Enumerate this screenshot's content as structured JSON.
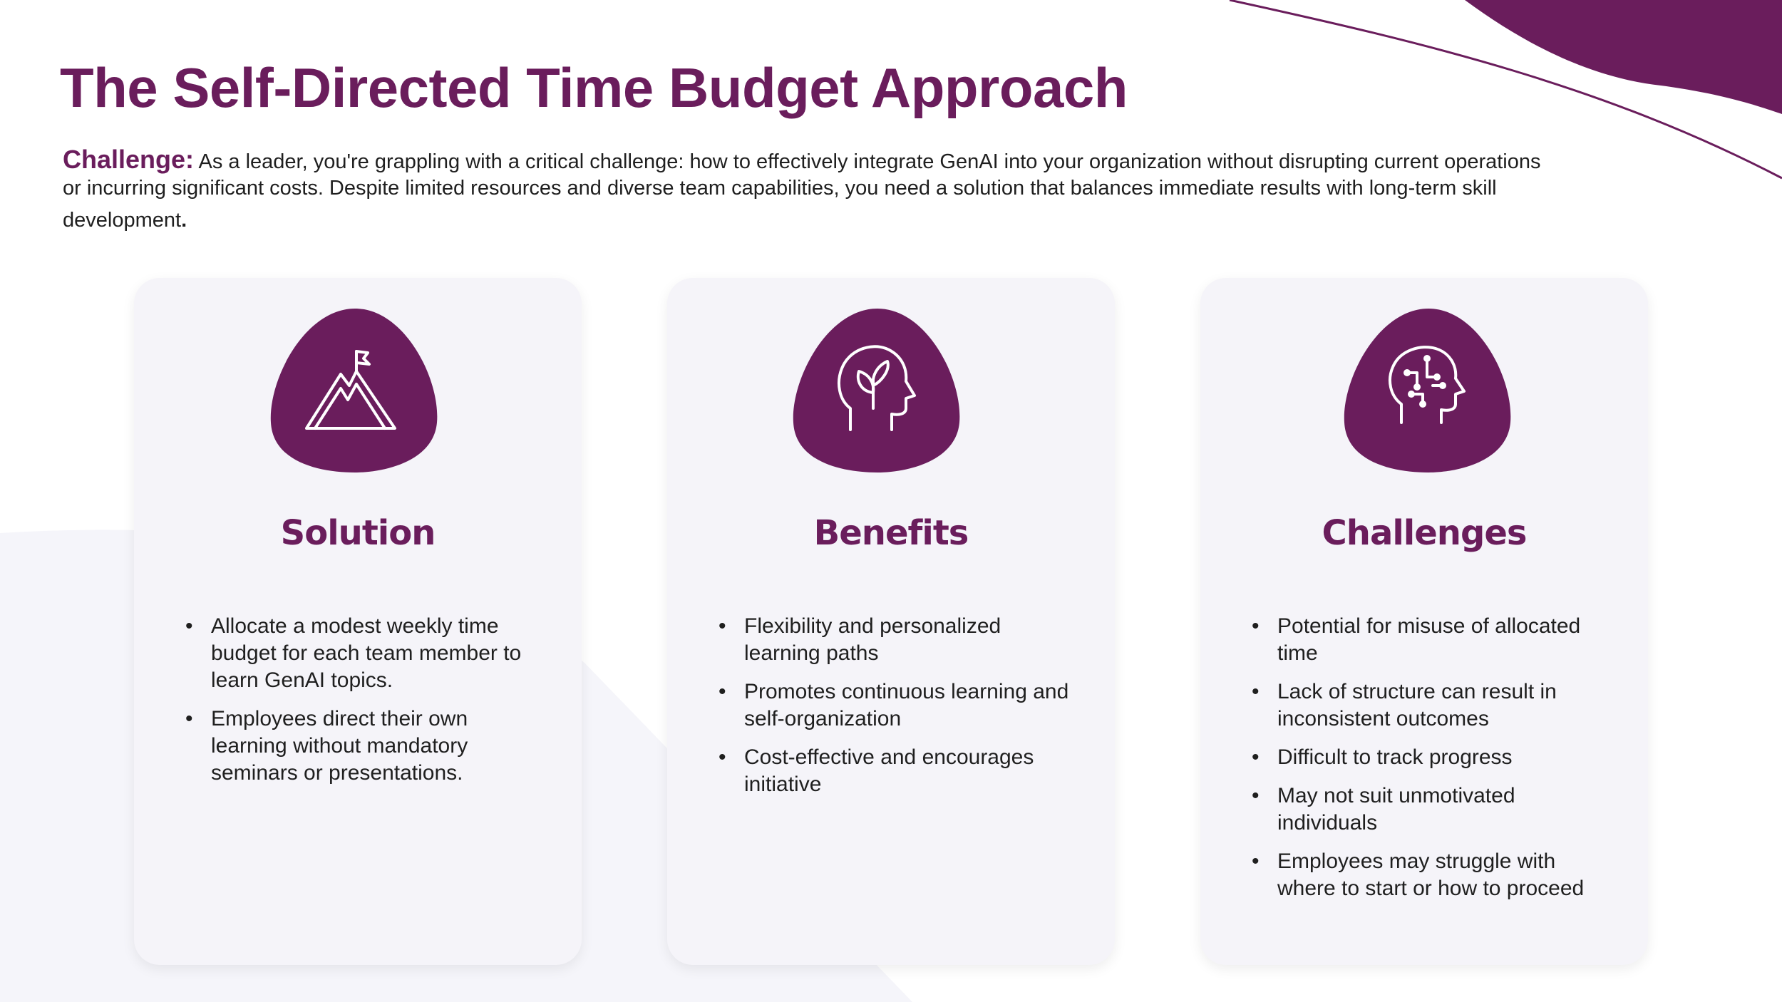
{
  "title": "The Self-Directed Time Budget Approach",
  "challenge": {
    "label": "Challenge:",
    "text_line1": " As a leader, you're grappling with a critical challenge: how to effectively integrate GenAI into your organization without disrupting current operations",
    "text_line2": "or incurring significant costs. Despite limited resources and diverse team capabilities, you need a solution that balances immediate results with long-term skill",
    "text_line3": "development",
    "end_punct": "."
  },
  "colors": {
    "brand": "#6a1d5c",
    "card_bg": "#f5f4f9",
    "text": "#1f1f1f"
  },
  "cards": [
    {
      "icon": "mountain-flag-icon",
      "heading": "Solution",
      "bullets": [
        "Allocate a modest weekly time budget for each team member to learn GenAI topics.",
        "Employees direct their own learning without mandatory seminars or presentations."
      ]
    },
    {
      "icon": "head-leaf-icon",
      "heading": "Benefits",
      "bullets": [
        "Flexibility and personalized learning paths",
        "Promotes continuous learning and self-organization",
        "Cost-effective and encourages initiative"
      ]
    },
    {
      "icon": "head-circuit-icon",
      "heading": "Challenges",
      "bullets": [
        "Potential for misuse of allocated time",
        "Lack of structure can result in inconsistent outcomes",
        "Difficult to track progress",
        "May not suit unmotivated individuals",
        "Employees may struggle with where to start or how to proceed"
      ]
    }
  ]
}
